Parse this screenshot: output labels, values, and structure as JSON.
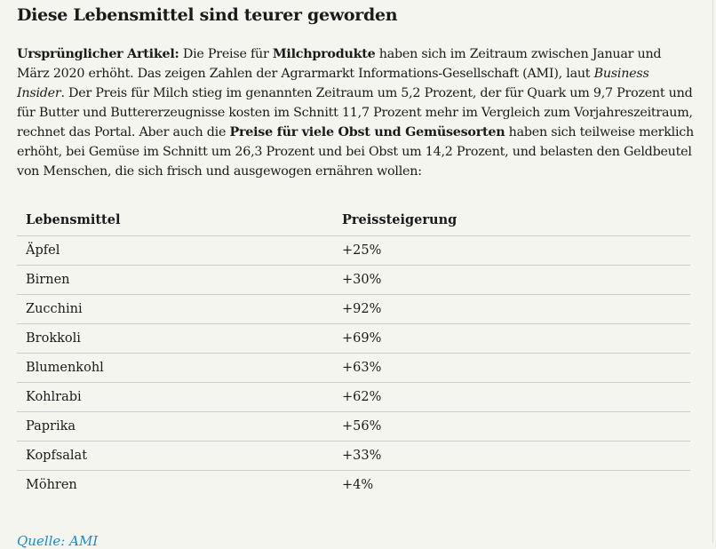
{
  "title": "Diese Lebensmittel sind teurer geworden",
  "intro": {
    "label": "Ursprünglicher Artikel:",
    "t1": " Die Preise für ",
    "b1": "Milchprodukte",
    "t2": " haben sich im Zeitraum zwischen Januar und März 2020 erhöht. Das zeigen Zahlen der Agrarmarkt Informations-Gesellschaft (AMI), laut ",
    "i1": "Business Insider",
    "t3": ". Der Preis für Milch stieg im genannten Zeitraum um 5,2 Prozent, der für Quark um 9,7 Prozent und für Butter und Buttererzeugnisse kosten im Schnitt 11,7 Prozent mehr im Vergleich zum Vorjahreszeitraum, rechnet das Portal. Aber auch die ",
    "b2": "Preise für viele Obst und Gemüsesorten",
    "t4": " haben sich teilweise merklich erhöht, bei Gemüse im Schnitt um 26,3 Prozent und bei Obst um 14,2 Prozent, und belasten den Geldbeutel von Menschen, die sich frisch und ausgewogen ernähren wollen:"
  },
  "table": {
    "headers": [
      "Lebensmittel",
      "Preissteigerung"
    ],
    "rows": [
      [
        "Äpfel",
        "+25%"
      ],
      [
        "Birnen",
        "+30%"
      ],
      [
        "Zucchini",
        "+92%"
      ],
      [
        "Brokkoli",
        "+69%"
      ],
      [
        "Blumenkohl",
        "+63%"
      ],
      [
        "Kohlrabi",
        "+62%"
      ],
      [
        "Paprika",
        "+56%"
      ],
      [
        "Kopfsalat",
        "+33%"
      ],
      [
        "Möhren",
        "+4%"
      ]
    ]
  },
  "source_link": "Quelle: AMI"
}
